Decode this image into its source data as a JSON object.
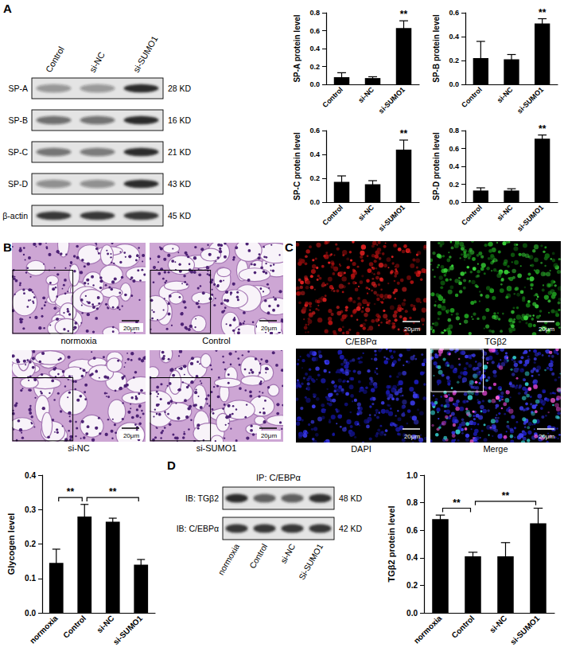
{
  "blot_A": {
    "panel": "A",
    "lanes": [
      "Control",
      "si-NC",
      "si-SUMO1"
    ],
    "rows": [
      {
        "label": "SP-A",
        "size": "28 KD"
      },
      {
        "label": "SP-B",
        "size": "16 KD"
      },
      {
        "label": "SP-C",
        "size": "21 KD"
      },
      {
        "label": "SP-D",
        "size": "43 KD"
      },
      {
        "label": "β-actin",
        "size": "45 KD"
      }
    ]
  },
  "micrographs_B": {
    "panel": "B",
    "images": [
      "normoxia",
      "Control",
      "si-NC",
      "si-SUMO1"
    ],
    "scale_bar": "20μm"
  },
  "fluorescence_C": {
    "panel": "C",
    "images": [
      "C/EBPα",
      "TGβ2",
      "DAPI",
      "Merge"
    ],
    "scale_bar": "20μm"
  },
  "blot_D": {
    "panel": "D",
    "title": "IP: C/EBPα",
    "lanes": [
      "normoxia",
      "Control",
      "si-NC",
      "Si-SUMO1"
    ],
    "rows": [
      {
        "label": "IB: TGβ2",
        "size": "48 KD"
      },
      {
        "label": "IB: C/EBPα",
        "size": "42 KD"
      }
    ]
  },
  "chart_data": [
    {
      "type": "bar",
      "ylabel": "SP-A protein level",
      "categories": [
        "Control",
        "si-NC",
        "si-SUMO1"
      ],
      "values": [
        0.08,
        0.07,
        0.63
      ],
      "errors": [
        0.05,
        0.015,
        0.08
      ],
      "color": "#000000",
      "grid": false,
      "ylim": [
        0,
        0.8
      ],
      "yticks": [
        {
          "value": 0,
          "label": "0.0"
        },
        0.2,
        0.4,
        0.6,
        0.8
      ],
      "annotations": [
        {
          "text": "**",
          "category": "si-SUMO1"
        }
      ]
    },
    {
      "type": "bar",
      "ylabel": "SP-B protein level",
      "categories": [
        "Control",
        "si-NC",
        "si-SUMO1"
      ],
      "values": [
        0.22,
        0.21,
        0.51
      ],
      "errors": [
        0.14,
        0.04,
        0.04
      ],
      "color": "#000000",
      "grid": false,
      "ylim": [
        0,
        0.6
      ],
      "yticks": [
        {
          "value": 0,
          "label": "0.0"
        },
        0.2,
        0.4,
        0.6
      ],
      "annotations": [
        {
          "text": "**",
          "category": "si-SUMO1"
        }
      ]
    },
    {
      "type": "bar",
      "ylabel": "SP-C protein level",
      "categories": [
        "Control",
        "si-NC",
        "si-SUMO1"
      ],
      "values": [
        0.17,
        0.15,
        0.44
      ],
      "errors": [
        0.05,
        0.03,
        0.08
      ],
      "color": "#000000",
      "grid": false,
      "ylim": [
        0,
        0.6
      ],
      "yticks": [
        {
          "value": 0,
          "label": "0.0"
        },
        0.2,
        0.4,
        0.6
      ],
      "annotations": [
        {
          "text": "**",
          "category": "si-SUMO1"
        }
      ]
    },
    {
      "type": "bar",
      "ylabel": "SP-D protein level",
      "categories": [
        "Control",
        "si-NC",
        "si-SUMO1"
      ],
      "values": [
        0.13,
        0.13,
        0.71
      ],
      "errors": [
        0.03,
        0.02,
        0.04
      ],
      "color": "#000000",
      "grid": false,
      "ylim": [
        0,
        0.8
      ],
      "yticks": [
        {
          "value": 0,
          "label": "0.0"
        },
        0.2,
        0.4,
        0.6,
        0.8
      ],
      "annotations": [
        {
          "text": "**",
          "category": "si-SUMO1"
        }
      ]
    },
    {
      "type": "bar",
      "ylabel": "Glycogen level",
      "categories": [
        "normoxia",
        "Control",
        "si-NC",
        "si-SUMO1"
      ],
      "values": [
        0.145,
        0.28,
        0.265,
        0.14
      ],
      "errors": [
        0.04,
        0.035,
        0.01,
        0.015
      ],
      "color": "#000000",
      "grid": false,
      "ylim": [
        0,
        0.4
      ],
      "yticks": [
        {
          "value": 0,
          "label": "0.0"
        },
        0.1,
        0.2,
        0.3,
        0.4
      ],
      "annotations": [
        {
          "text": "**",
          "from": "normoxia",
          "to": "Control"
        },
        {
          "text": "**",
          "from": "Control",
          "to": "si-SUMO1"
        }
      ]
    },
    {
      "type": "bar",
      "ylabel": "TGβ2 protein level",
      "categories": [
        "normoxia",
        "Control",
        "si-NC",
        "si-SUMO1"
      ],
      "values": [
        0.68,
        0.41,
        0.41,
        0.65
      ],
      "errors": [
        0.03,
        0.03,
        0.1,
        0.11
      ],
      "color": "#000000",
      "grid": false,
      "ylim": [
        0,
        1
      ],
      "yticks": [
        {
          "value": 0,
          "label": "0.0"
        },
        0.2,
        0.4,
        0.6,
        0.8,
        {
          "value": 1,
          "label": "1.0"
        }
      ],
      "annotations": [
        {
          "text": "**",
          "from": "normoxia",
          "to": "Control"
        },
        {
          "text": "**",
          "from": "Control",
          "to": "si-SUMO1"
        }
      ]
    }
  ]
}
